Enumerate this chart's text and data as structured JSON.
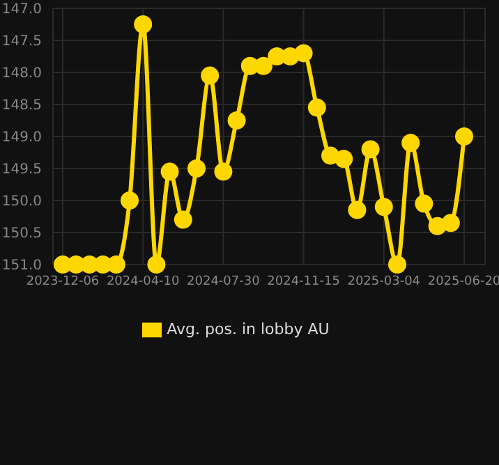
{
  "chart_data": {
    "type": "line",
    "categories": [
      "2023-12-06",
      null,
      null,
      null,
      null,
      null,
      "2024-04-10",
      null,
      null,
      null,
      null,
      null,
      "2024-07-30",
      null,
      null,
      null,
      null,
      null,
      "2024-11-15",
      null,
      null,
      null,
      null,
      null,
      "2025-03-04",
      null,
      null,
      null,
      null,
      null,
      "2025-06-20"
    ],
    "series": [
      {
        "name": "Avg. pos. in lobby AU",
        "color": "#ffd700",
        "values": [
          151.0,
          151.0,
          151.0,
          151.0,
          151.0,
          150.0,
          147.25,
          151.0,
          149.55,
          150.3,
          149.5,
          148.05,
          149.55,
          148.75,
          147.9,
          147.9,
          147.75,
          147.75,
          147.7,
          148.55,
          149.3,
          149.35,
          150.15,
          149.2,
          150.1,
          151.0,
          149.1,
          150.05,
          150.4,
          150.35,
          149.0
        ]
      }
    ],
    "ylim": [
      151.0,
      147.0
    ],
    "yticks": [
      {
        "value": 147,
        "label": "147.0"
      },
      {
        "value": 147.5,
        "label": "147.5"
      },
      {
        "value": 148,
        "label": "148.0"
      },
      {
        "value": 148.5,
        "label": "148.5"
      },
      {
        "value": 149,
        "label": "149.0"
      },
      {
        "value": 149.5,
        "label": "149.5"
      },
      {
        "value": 150,
        "label": "150.0"
      },
      {
        "value": 150.5,
        "label": "150.5"
      },
      {
        "value": 151,
        "label": "151.0"
      }
    ],
    "grid": true,
    "legend": "bottom",
    "marker": "circle",
    "line_style": "solid"
  }
}
